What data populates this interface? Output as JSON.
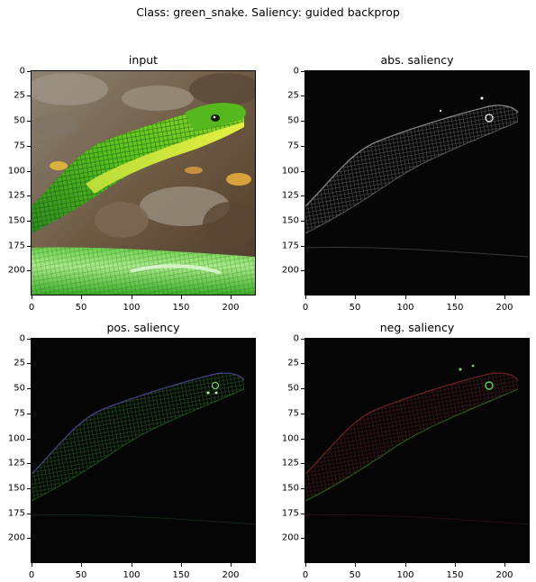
{
  "figure": {
    "title": "Class: green_snake. Saliency: guided backprop"
  },
  "panels": [
    {
      "title": "input"
    },
    {
      "title": "abs. saliency"
    },
    {
      "title": "pos. saliency"
    },
    {
      "title": "neg. saliency"
    }
  ],
  "axes": {
    "y_ticks": [
      "0",
      "25",
      "50",
      "75",
      "100",
      "125",
      "150",
      "175",
      "200"
    ],
    "x_ticks": [
      "0",
      "50",
      "100",
      "150",
      "200"
    ]
  }
}
